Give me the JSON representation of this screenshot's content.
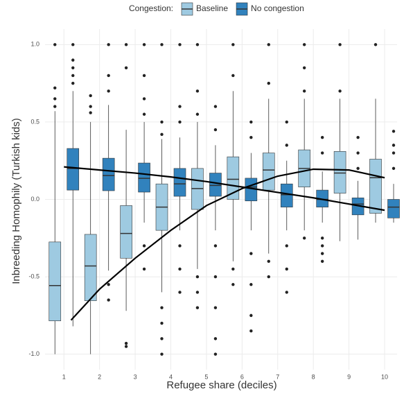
{
  "chart_data": {
    "type": "box",
    "legend_title": "Congestion:",
    "x_label": "Refugee share (deciles)",
    "y_label": "Inbreeding Homophily (Turkish kids)",
    "x": [
      1,
      2,
      3,
      4,
      5,
      6,
      7,
      8,
      9,
      10
    ],
    "xlim": [
      0.47,
      10.35
    ],
    "xticks": [
      1,
      2,
      3,
      4,
      5,
      6,
      7,
      8,
      9,
      10
    ],
    "ylim": [
      -1.1,
      1.1
    ],
    "yticks": [
      {
        "value": -1,
        "label": "-1.0"
      },
      {
        "value": -0.5,
        "label": "-0.5"
      },
      {
        "value": 0,
        "label": "0.0"
      },
      {
        "value": 0.5,
        "label": "0.5"
      },
      {
        "value": 1,
        "label": "1.0"
      }
    ],
    "grid": true,
    "legend_position": "top",
    "series": [
      {
        "name": "Baseline",
        "color": "#9ecae1",
        "boxes": [
          {
            "min": -1,
            "q1": -0.785,
            "median": -0.557,
            "q3": -0.275,
            "max": 0.57,
            "outliers": [
              0.6,
              0.65,
              0.72,
              1
            ]
          },
          {
            "min": -1,
            "q1": -0.655,
            "median": -0.43,
            "q3": -0.226,
            "max": 0.5,
            "outliers": [
              0.56,
              0.6,
              0.67
            ]
          },
          {
            "min": -0.72,
            "q1": -0.38,
            "median": -0.22,
            "q3": -0.04,
            "max": 0.45,
            "outliers": [
              -0.93,
              -0.95,
              0.85,
              1
            ]
          },
          {
            "min": -0.6,
            "q1": -0.2,
            "median": -0.05,
            "q3": 0.1,
            "max": 0.39,
            "outliers": [
              -0.7,
              -0.8,
              -0.9,
              -1,
              0.42,
              0.5,
              1
            ]
          },
          {
            "min": -0.45,
            "q1": -0.065,
            "median": 0.07,
            "q3": 0.2,
            "max": 0.5,
            "outliers": [
              -0.5,
              -0.6,
              -0.7,
              0.55,
              0.7,
              1
            ]
          },
          {
            "min": -0.4,
            "q1": 0,
            "median": 0.13,
            "q3": 0.275,
            "max": 0.7,
            "outliers": [
              -0.45,
              -0.55,
              0.8,
              1
            ]
          },
          {
            "min": -0.35,
            "q1": 0.06,
            "median": 0.19,
            "q3": 0.3,
            "max": 0.65,
            "outliers": [
              -0.4,
              -0.5,
              0.75,
              1
            ]
          },
          {
            "min": -0.2,
            "q1": 0.08,
            "median": 0.2,
            "q3": 0.32,
            "max": 0.65,
            "outliers": [
              -0.25,
              0.7,
              0.85,
              1
            ]
          },
          {
            "min": -0.27,
            "q1": 0.04,
            "median": 0.17,
            "q3": 0.31,
            "max": 0.65,
            "outliers": [
              0.7,
              1
            ]
          },
          {
            "min": -0.15,
            "q1": -0.09,
            "median": 0.14,
            "q3": 0.26,
            "max": 0.65,
            "outliers": [
              1
            ]
          }
        ]
      },
      {
        "name": "No congestion",
        "color": "#3182bd",
        "boxes": [
          {
            "min": -0.82,
            "q1": 0.06,
            "median": 0.2,
            "q3": 0.329,
            "max": 0.7,
            "outliers": [
              0.75,
              0.8,
              0.85,
              0.9,
              1
            ]
          },
          {
            "min": -0.46,
            "q1": 0.056,
            "median": 0.154,
            "q3": 0.266,
            "max": 0.61,
            "outliers": [
              -0.55,
              -0.65,
              0.7,
              0.8,
              1
            ]
          },
          {
            "min": -0.15,
            "q1": 0.047,
            "median": 0.136,
            "q3": 0.235,
            "max": 0.5,
            "outliers": [
              -0.3,
              -0.45,
              0.55,
              0.65,
              0.8,
              1
            ]
          },
          {
            "min": -0.2,
            "q1": 0.02,
            "median": 0.1,
            "q3": 0.2,
            "max": 0.4,
            "outliers": [
              -0.3,
              -0.45,
              -0.6,
              0.5,
              0.6,
              1
            ]
          },
          {
            "min": -0.2,
            "q1": 0.02,
            "median": 0.09,
            "q3": 0.17,
            "max": 0.35,
            "outliers": [
              -0.3,
              -0.5,
              -0.7,
              -0.9,
              -1,
              0.45,
              0.6
            ]
          },
          {
            "min": -0.2,
            "q1": -0.01,
            "median": 0.08,
            "q3": 0.137,
            "max": 0.3,
            "outliers": [
              -0.35,
              -0.55,
              -0.75,
              -0.85,
              0.4,
              0.5
            ]
          },
          {
            "min": -0.2,
            "q1": -0.05,
            "median": 0.03,
            "q3": 0.1,
            "max": 0.25,
            "outliers": [
              -0.3,
              -0.45,
              -0.6,
              0.35,
              0.5
            ]
          },
          {
            "min": -0.15,
            "q1": -0.05,
            "median": 0,
            "q3": 0.06,
            "max": 0.18,
            "outliers": [
              -0.25,
              -0.3,
              -0.35,
              -0.4,
              0.3,
              0.4
            ]
          },
          {
            "min": -0.26,
            "q1": -0.1,
            "median": -0.03,
            "q3": 0.01,
            "max": 0.12,
            "outliers": [
              0.2,
              0.3,
              0.4
            ]
          },
          {
            "min": -0.15,
            "q1": -0.12,
            "median": -0.05,
            "q3": 0,
            "max": 0.1,
            "outliers": [
              0.2,
              0.3,
              0.35,
              0.44
            ]
          }
        ]
      }
    ],
    "fits": [
      {
        "color": "#000000",
        "x": [
          1.2,
          2,
          3,
          4,
          5,
          6,
          7,
          8,
          9,
          10
        ],
        "y": [
          -0.78,
          -0.58,
          -0.38,
          -0.2,
          -0.04,
          0.07,
          0.15,
          0.195,
          0.19,
          0.14
        ]
      },
      {
        "color": "#000000",
        "x": [
          1,
          2,
          3,
          4,
          5,
          6,
          7,
          8,
          9,
          10
        ],
        "y": [
          0.21,
          0.19,
          0.17,
          0.145,
          0.115,
          0.08,
          0.045,
          0.01,
          -0.03,
          -0.07
        ]
      }
    ]
  }
}
